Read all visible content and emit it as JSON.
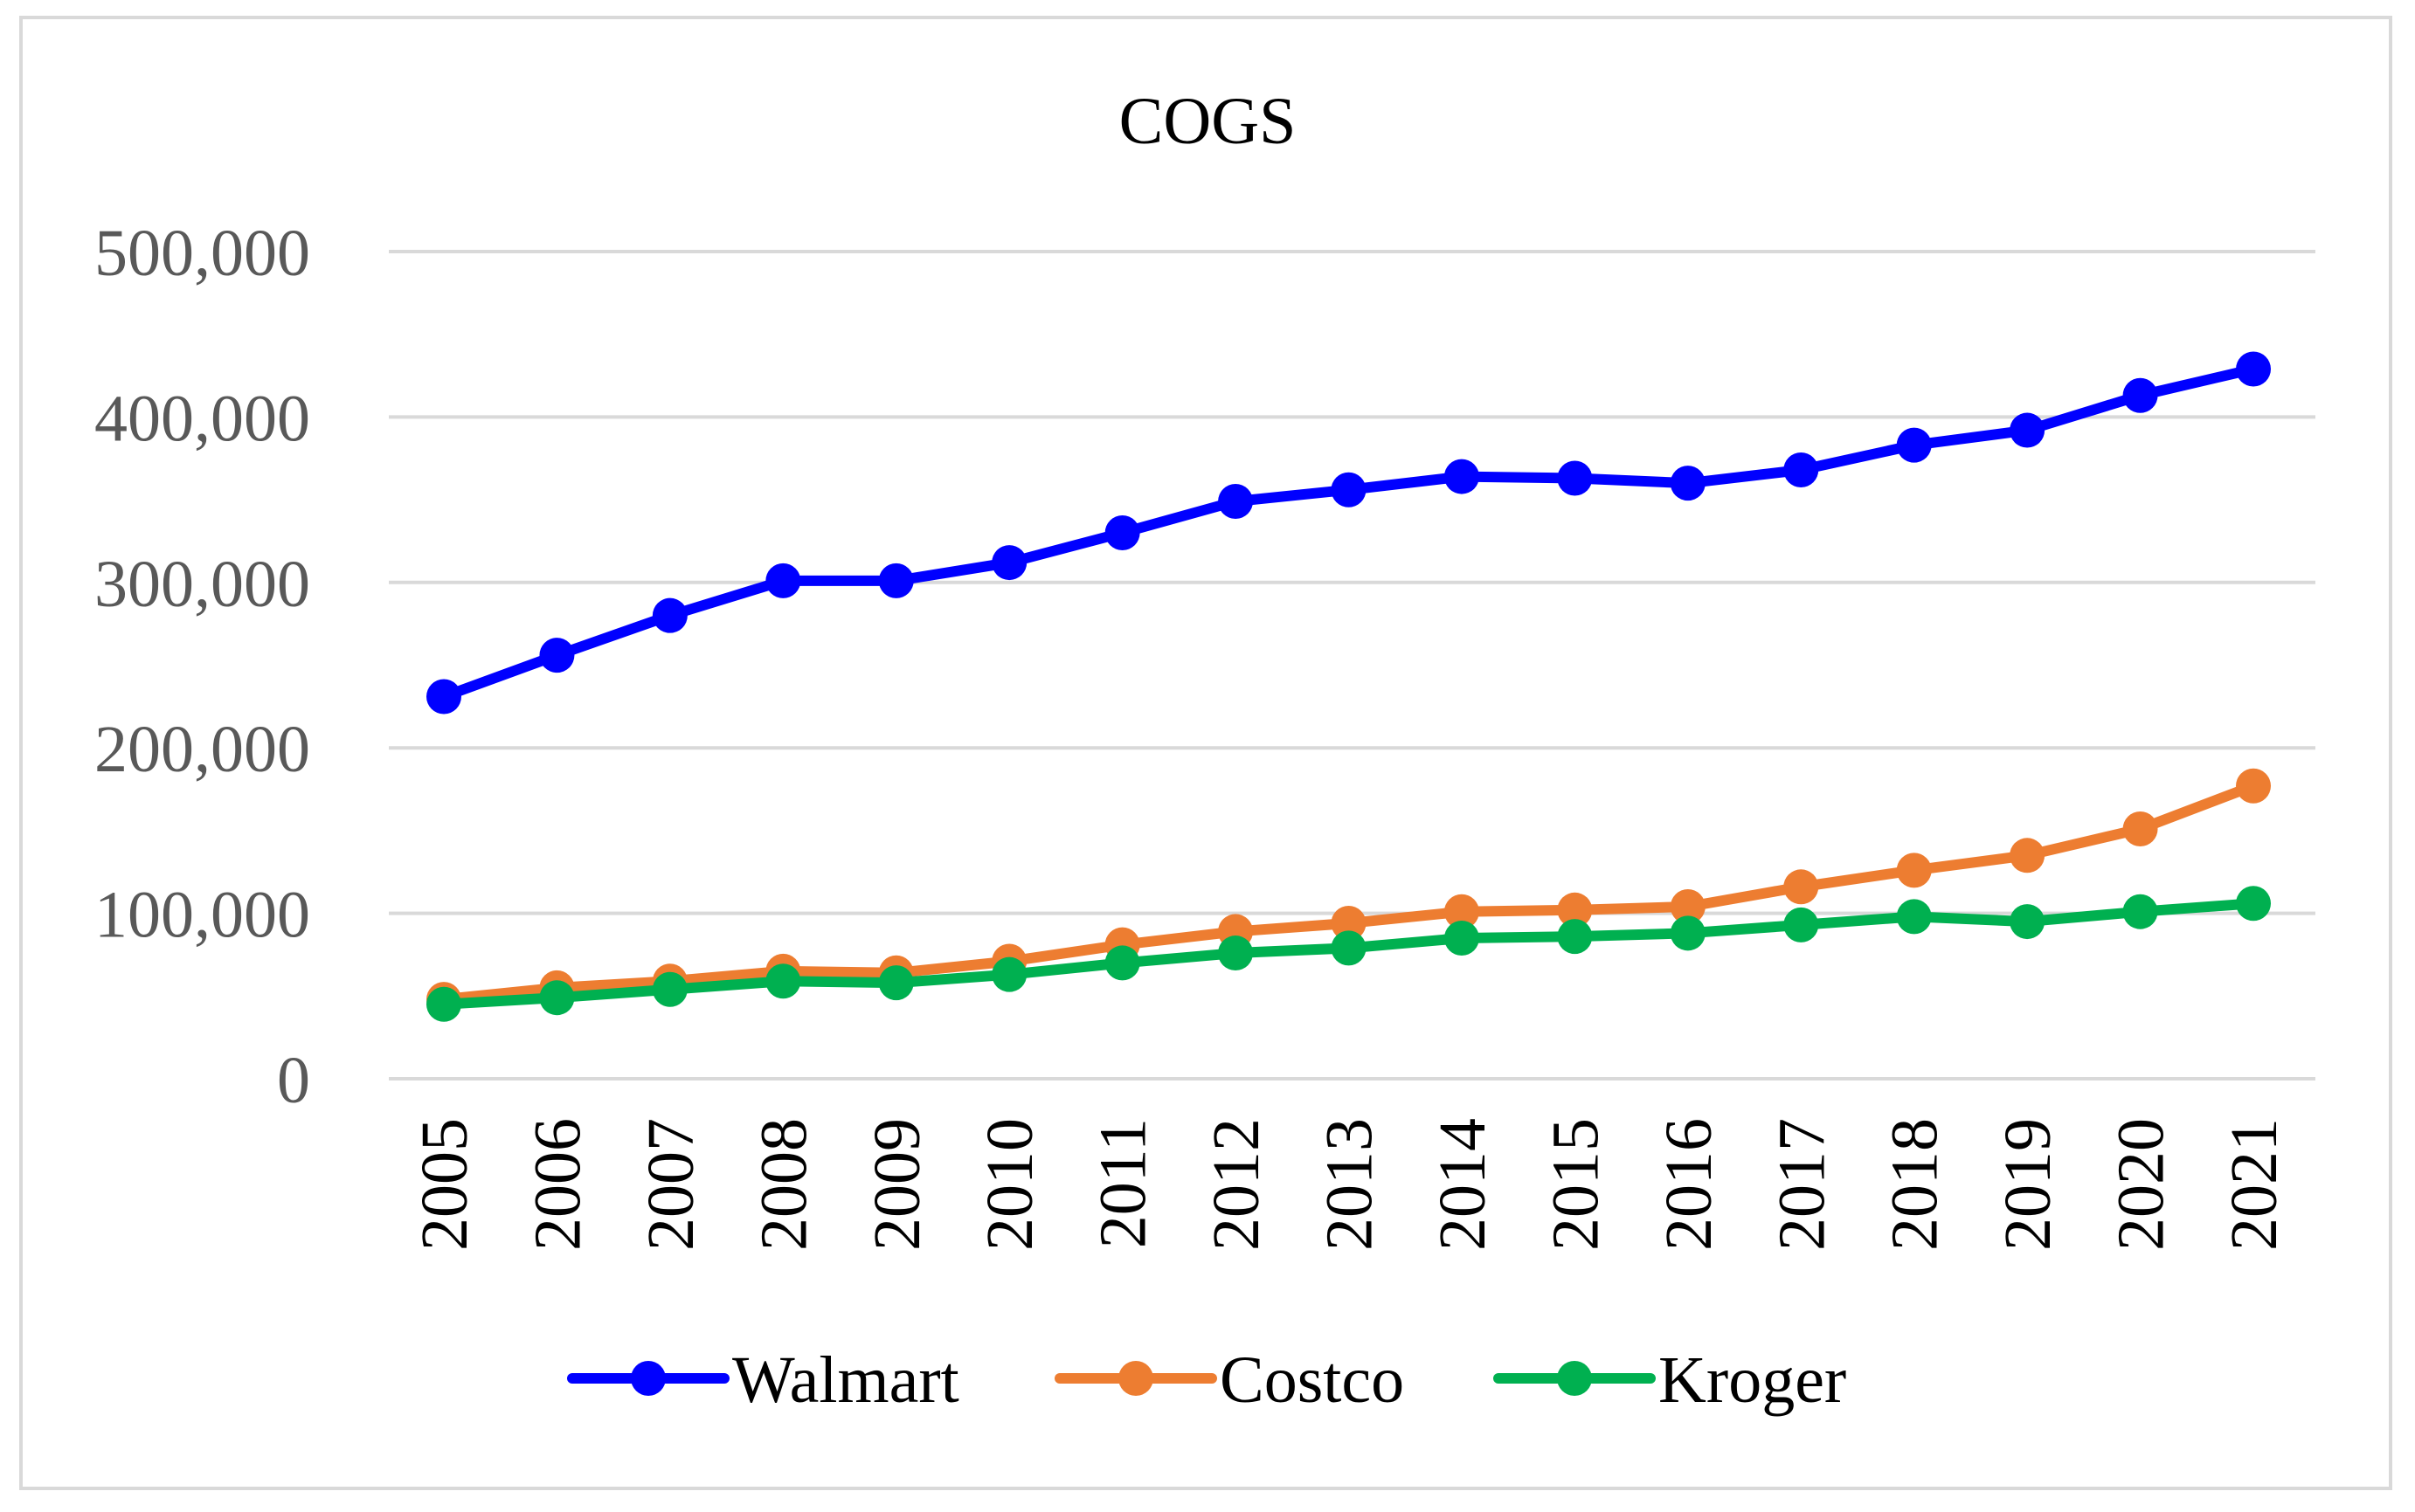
{
  "chart_data": {
    "type": "line",
    "title": "COGS",
    "xlabel": "",
    "ylabel": "",
    "categories": [
      "2005",
      "2006",
      "2007",
      "2008",
      "2009",
      "2010",
      "2011",
      "2012",
      "2013",
      "2014",
      "2015",
      "2016",
      "2017",
      "2018",
      "2019",
      "2020",
      "2021"
    ],
    "ylim": [
      0,
      500000
    ],
    "yticks": [
      0,
      100000,
      200000,
      300000,
      400000,
      500000
    ],
    "ytick_labels": [
      "0",
      "100,000",
      "200,000",
      "300,000",
      "400,000",
      "500,000"
    ],
    "grid": true,
    "legend_position": "bottom",
    "series": [
      {
        "name": "Walmart",
        "color": "#0000ff",
        "values": [
          231000,
          256000,
          280000,
          301000,
          301000,
          312000,
          330000,
          349000,
          356000,
          364000,
          363000,
          360000,
          368000,
          383000,
          392000,
          413000,
          429000
        ]
      },
      {
        "name": "Costco",
        "color": "#ed7d31",
        "values": [
          48000,
          55000,
          59000,
          65000,
          64000,
          71000,
          81000,
          89000,
          94000,
          101000,
          102000,
          104000,
          116000,
          126000,
          135000,
          151000,
          177000
        ]
      },
      {
        "name": "Kroger",
        "color": "#00b050",
        "values": [
          45000,
          49000,
          54000,
          59000,
          58000,
          63000,
          70000,
          76000,
          79000,
          85000,
          86000,
          88000,
          93000,
          98000,
          95000,
          101000,
          106000
        ]
      }
    ]
  }
}
